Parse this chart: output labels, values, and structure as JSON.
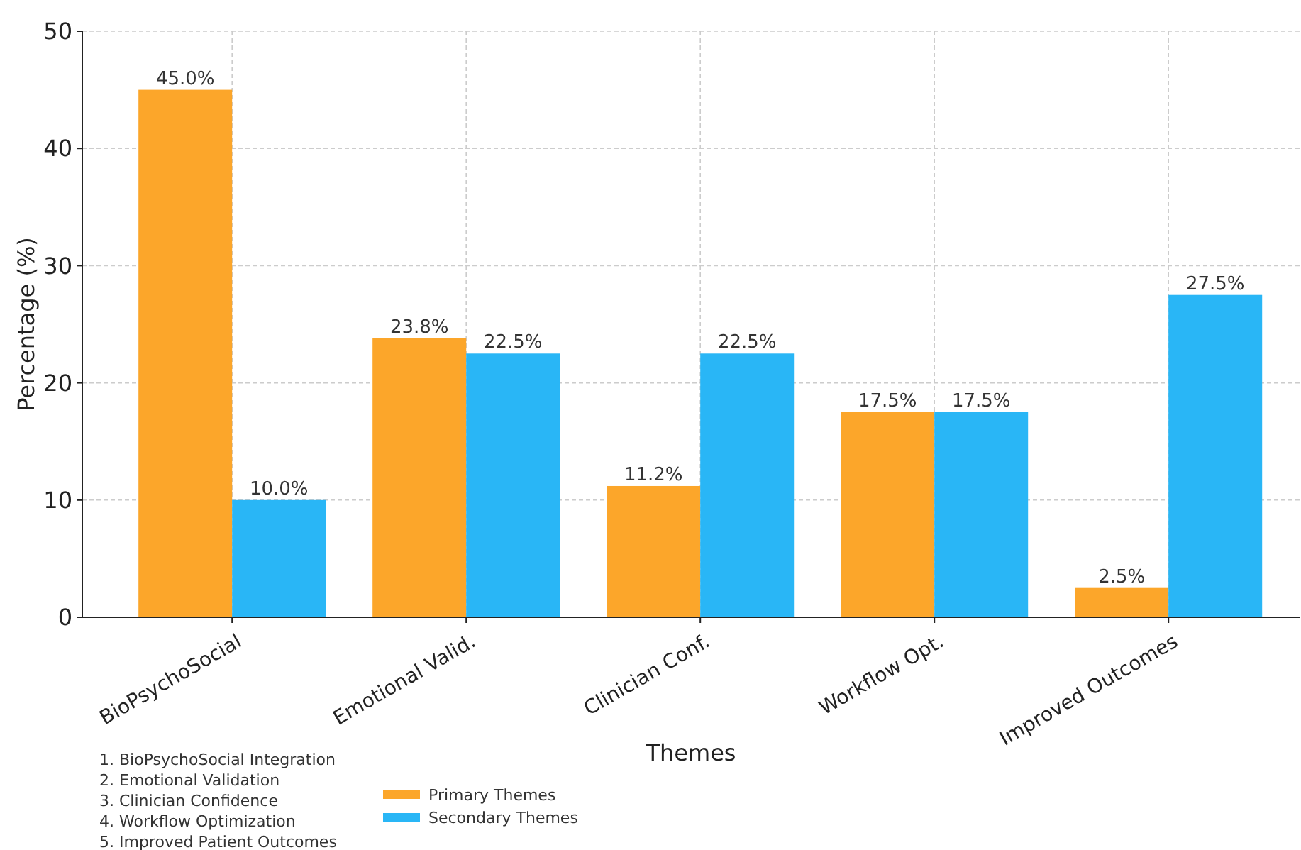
{
  "chart_data": {
    "type": "bar",
    "categories": [
      "BioPsychoSocial",
      "Emotional Valid.",
      "Clinician Conf.",
      "Workflow Opt.",
      "Improved Outcomes"
    ],
    "xlabel": "Themes",
    "ylabel": "Percentage (%)",
    "series": [
      {
        "name": "Primary Themes",
        "color": "#fca62a",
        "values": [
          45.0,
          23.8,
          11.2,
          17.5,
          2.5
        ],
        "value_labels": [
          "45.0%",
          "23.8%",
          "11.2%",
          "17.5%",
          "2.5%"
        ]
      },
      {
        "name": "Secondary Themes",
        "color": "#29b6f6",
        "values": [
          10.0,
          22.5,
          22.5,
          17.5,
          27.5
        ],
        "value_labels": [
          "10.0%",
          "22.5%",
          "22.5%",
          "17.5%",
          "27.5%"
        ]
      }
    ],
    "ylim": [
      0,
      50
    ],
    "yticks": [
      0,
      10,
      20,
      30,
      40,
      50
    ],
    "grid": true,
    "legend": "bottom",
    "annotations": [
      "1. BioPsychoSocial Integration",
      "2. Emotional Validation",
      "3. Clinician Confidence",
      "4. Workflow Optimization",
      "5. Improved Patient Outcomes"
    ]
  }
}
